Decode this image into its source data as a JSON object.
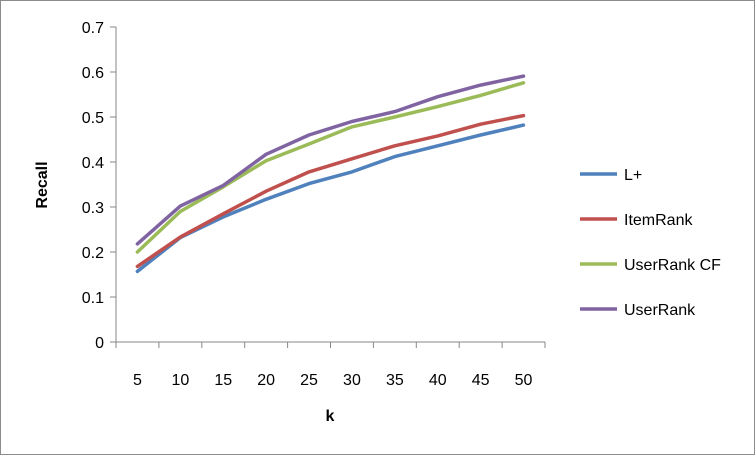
{
  "chart_data": {
    "type": "line",
    "title": "",
    "xlabel": "k",
    "ylabel": "Recall",
    "categories": [
      "5",
      "10",
      "15",
      "20",
      "25",
      "30",
      "35",
      "40",
      "45",
      "50"
    ],
    "ylim": [
      0,
      0.7
    ],
    "yticks": [
      "0",
      "0.1",
      "0.2",
      "0.3",
      "0.4",
      "0.5",
      "0.6",
      "0.7"
    ],
    "grid": false,
    "legend_position": "right",
    "series": [
      {
        "name": "L+",
        "color": "#4f81bd",
        "values": [
          0.157,
          0.232,
          0.278,
          0.317,
          0.352,
          0.378,
          0.412,
          0.436,
          0.46,
          0.482
        ]
      },
      {
        "name": "ItemRank",
        "color": "#c0504d",
        "values": [
          0.168,
          0.233,
          0.285,
          0.335,
          0.378,
          0.407,
          0.436,
          0.458,
          0.484,
          0.503
        ]
      },
      {
        "name": "UserRank CF",
        "color": "#9bbb59",
        "values": [
          0.2,
          0.29,
          0.345,
          0.403,
          0.44,
          0.478,
          0.5,
          0.523,
          0.548,
          0.576
        ]
      },
      {
        "name": "UserRank",
        "color": "#8064a2",
        "values": [
          0.218,
          0.302,
          0.348,
          0.417,
          0.46,
          0.49,
          0.512,
          0.545,
          0.571,
          0.591
        ]
      }
    ]
  }
}
